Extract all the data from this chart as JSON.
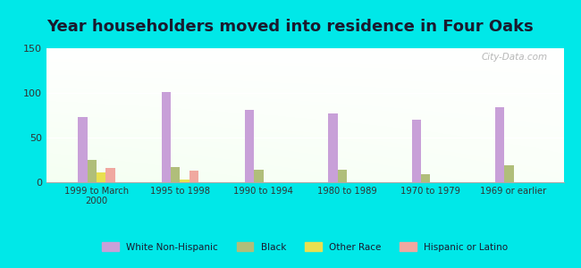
{
  "title": "Year householders moved into residence in Four Oaks",
  "categories": [
    "1999 to March\n2000",
    "1995 to 1998",
    "1990 to 1994",
    "1980 to 1989",
    "1970 to 1979",
    "1969 or earlier"
  ],
  "series": {
    "White Non-Hispanic": [
      73,
      101,
      81,
      77,
      70,
      84
    ],
    "Black": [
      25,
      17,
      14,
      14,
      9,
      19
    ],
    "Other Race": [
      11,
      3,
      0,
      0,
      0,
      0
    ],
    "Hispanic or Latino": [
      16,
      13,
      0,
      0,
      0,
      0
    ]
  },
  "colors": {
    "White Non-Hispanic": "#c8a0d8",
    "Black": "#b0be7a",
    "Other Race": "#e8e050",
    "Hispanic or Latino": "#f0a8a0"
  },
  "ylim": [
    0,
    150
  ],
  "yticks": [
    0,
    50,
    100,
    150
  ],
  "background_color": "#00e8e8",
  "title_fontsize": 13,
  "title_color": "#1a1a2e",
  "watermark": "City-Data.com"
}
